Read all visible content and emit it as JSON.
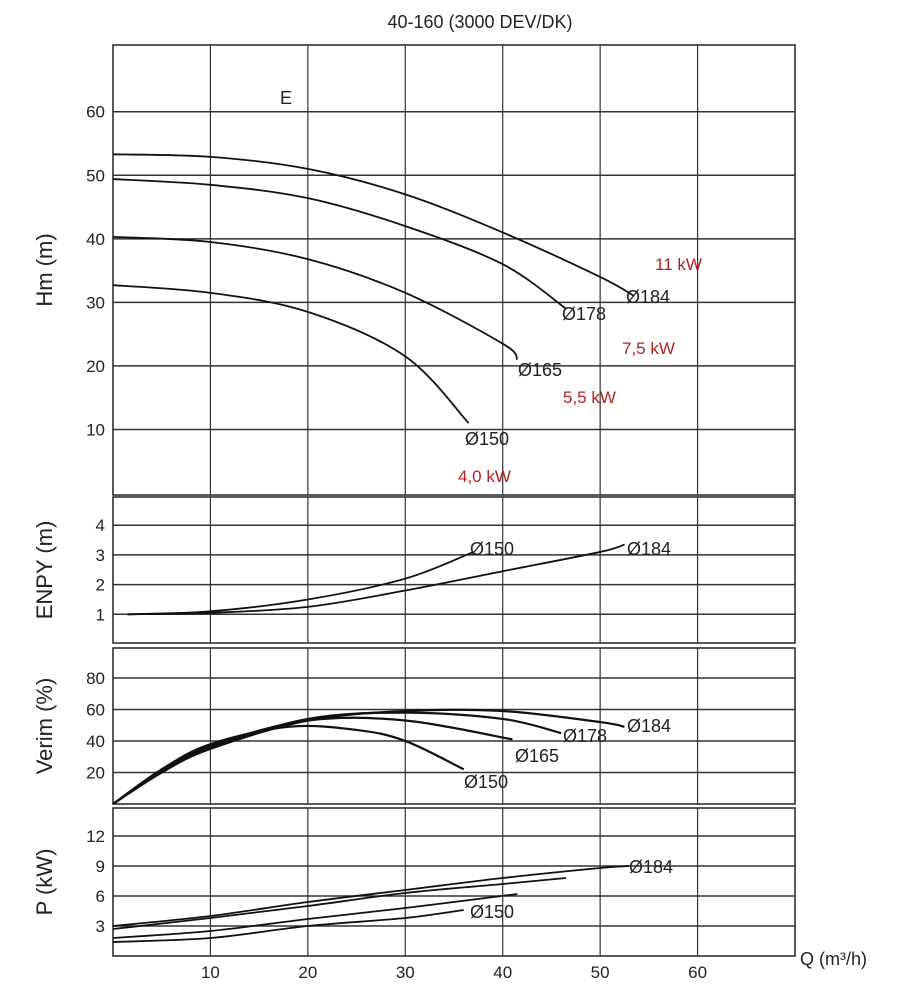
{
  "chart_data": [
    {
      "type": "line",
      "title": "40-160 (3000 DEV/DK)",
      "annotation": "E",
      "ylabel": "Hm (m)",
      "xlabel": "Q (m³/h)",
      "xlim": [
        0,
        70
      ],
      "ylim": [
        0,
        70.5
      ],
      "yticks": [
        10,
        20,
        30,
        40,
        50,
        60
      ],
      "grid": true,
      "series": [
        {
          "name": "Ø184",
          "x": [
            0,
            10,
            20,
            30,
            40,
            50,
            53.5
          ],
          "y": [
            53.3,
            52.9,
            51,
            47,
            41,
            34,
            31
          ]
        },
        {
          "name": "Ø178",
          "x": [
            0,
            10,
            20,
            30,
            40,
            46.5
          ],
          "y": [
            49.4,
            48.5,
            46.4,
            42,
            36,
            29
          ]
        },
        {
          "name": "Ø165",
          "x": [
            0,
            10,
            20,
            30,
            40,
            41.5
          ],
          "y": [
            40.3,
            39.5,
            36.8,
            31.5,
            23.5,
            21
          ]
        },
        {
          "name": "Ø150",
          "x": [
            0,
            10,
            20,
            30,
            36.5
          ],
          "y": [
            32.7,
            31.5,
            28.5,
            21.5,
            11
          ]
        }
      ],
      "power_labels": [
        "11 kW",
        "7,5 kW",
        "5,5 kW",
        "4,0 kW"
      ],
      "power_label_color": "#b22222"
    },
    {
      "type": "line",
      "ylabel": "ENPY (m)",
      "xlim": [
        0,
        70
      ],
      "ylim": [
        0,
        4.95
      ],
      "yticks": [
        1,
        2,
        3,
        4
      ],
      "grid": true,
      "series": [
        {
          "name": "Ø150",
          "x": [
            1.5,
            10,
            20,
            30,
            37
          ],
          "y": [
            1.0,
            1.1,
            1.5,
            2.2,
            3.1
          ]
        },
        {
          "name": "Ø184",
          "x": [
            1.5,
            10,
            20,
            30,
            40,
            50,
            52.5
          ],
          "y": [
            1.0,
            1.05,
            1.25,
            1.8,
            2.45,
            3.1,
            3.35
          ]
        }
      ]
    },
    {
      "type": "line",
      "ylabel": "Verim (%)",
      "xlim": [
        0,
        70
      ],
      "ylim": [
        0,
        99
      ],
      "yticks": [
        20,
        40,
        60,
        80
      ],
      "grid": true,
      "series": [
        {
          "name": "Ø184",
          "x": [
            0,
            5,
            10,
            20,
            30,
            40,
            50,
            52.5
          ],
          "y": [
            0,
            20,
            35,
            53,
            59,
            59,
            52,
            49
          ]
        },
        {
          "name": "Ø178",
          "x": [
            0,
            5,
            10,
            20,
            30,
            40,
            46
          ],
          "y": [
            0,
            21,
            36,
            54,
            58,
            54,
            45
          ]
        },
        {
          "name": "Ø165",
          "x": [
            0,
            5,
            10,
            20,
            30,
            41
          ],
          "y": [
            0,
            21,
            37,
            53,
            53,
            41
          ]
        },
        {
          "name": "Ø150",
          "x": [
            0,
            5,
            10,
            18,
            25,
            30,
            36
          ],
          "y": [
            0,
            22,
            38,
            49,
            47,
            40,
            22
          ]
        }
      ],
      "labels": [
        "Ø184",
        "Ø178",
        "Ø165",
        "Ø150"
      ]
    },
    {
      "type": "line",
      "ylabel": "P (kW)",
      "xlabel": "Q (m³/h)",
      "xlim": [
        0,
        70
      ],
      "ylim": [
        0,
        14.8
      ],
      "yticks": [
        3,
        6,
        9,
        12
      ],
      "xticks": [
        10,
        20,
        30,
        40,
        50,
        60
      ],
      "grid": true,
      "series": [
        {
          "name": "Ø184",
          "x": [
            0,
            10,
            20,
            30,
            40,
            50,
            53
          ],
          "y": [
            3.0,
            4.0,
            5.4,
            6.6,
            7.8,
            8.8,
            9.0
          ]
        },
        {
          "name": "Ø178",
          "x": [
            0,
            10,
            20,
            30,
            40,
            46.5
          ],
          "y": [
            2.7,
            3.8,
            5.0,
            6.3,
            7.2,
            7.8
          ]
        },
        {
          "name": "Ø165",
          "x": [
            0,
            10,
            20,
            30,
            41.5
          ],
          "y": [
            1.8,
            2.5,
            3.7,
            4.8,
            6.2
          ]
        },
        {
          "name": "Ø150",
          "x": [
            0,
            10,
            20,
            30,
            36
          ],
          "y": [
            1.4,
            1.8,
            3.0,
            3.8,
            4.6
          ]
        }
      ],
      "labels": [
        "Ø184",
        "Ø150"
      ]
    }
  ]
}
